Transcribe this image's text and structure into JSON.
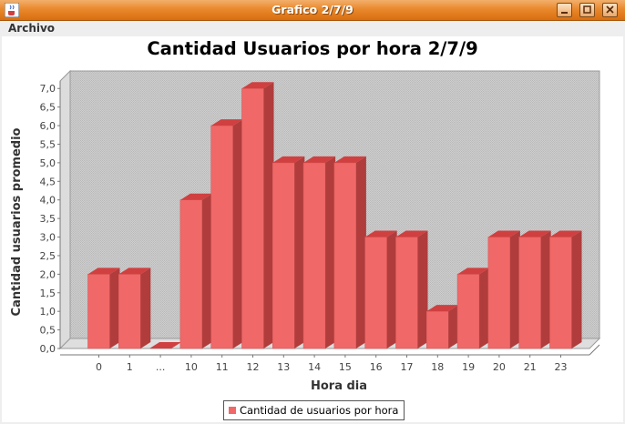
{
  "window": {
    "title": "Grafico 2/7/9",
    "minimize_label": "minimize",
    "maximize_label": "maximize",
    "close_label": "close"
  },
  "menu": {
    "items": [
      "Archivo"
    ]
  },
  "chart_data": {
    "type": "bar",
    "title": "Cantidad Usuarios por hora 2/7/9",
    "xlabel": "Hora dia",
    "ylabel": "Cantidad usuarios promedio",
    "categories": [
      "0",
      "1",
      "...",
      "10",
      "11",
      "12",
      "13",
      "14",
      "15",
      "16",
      "17",
      "18",
      "19",
      "20",
      "21",
      "23"
    ],
    "series": [
      {
        "name": "Cantidad de usuarios por hora",
        "values": [
          2,
          2,
          0,
          4,
          6,
          7,
          5,
          5,
          5,
          3,
          3,
          1,
          2,
          3,
          3,
          3
        ]
      }
    ],
    "ylim": [
      0,
      7.3
    ],
    "yticks": [
      "0,0",
      "0,5",
      "1,0",
      "1,5",
      "2,0",
      "2,5",
      "3,0",
      "3,5",
      "4,0",
      "4,5",
      "5,0",
      "5,5",
      "6,0",
      "6,5",
      "7,0"
    ],
    "grid": false,
    "style": "3d",
    "legend_position": "bottom",
    "colors": {
      "bar_front": "#f06868",
      "bar_top": "#d04040",
      "bar_side": "#b03c3c",
      "plot_bg": "#c8c8c8"
    }
  }
}
